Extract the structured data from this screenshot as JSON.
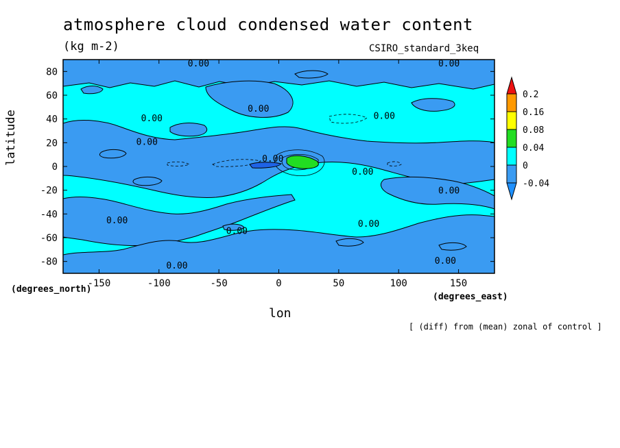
{
  "chart_data": {
    "type": "heatmap",
    "title": "atmosphere cloud condensed water content",
    "units": "(kg m-2)",
    "model": "CSIRO_standard_3keq",
    "xlabel": "lon",
    "ylabel": "latitude",
    "x_units": "(degrees_east)",
    "y_units": "(degrees_north)",
    "footnote": "[ (diff) from (mean) zonal of control ]",
    "xlim": [
      -180,
      180
    ],
    "ylim": [
      -90,
      90
    ],
    "x_ticks": [
      -150,
      -100,
      -50,
      0,
      50,
      100,
      150
    ],
    "y_ticks": [
      80,
      60,
      40,
      20,
      0,
      -20,
      -40,
      -60,
      -80
    ],
    "colorbar": {
      "levels": [
        -0.04,
        0,
        0.04,
        0.08,
        0.16,
        0.2
      ],
      "level_labels": [
        "-0.04",
        "0",
        "0.04",
        "0.08",
        "0.16",
        "0.2"
      ],
      "colors": [
        "#1e90ff",
        "#3a9bf2",
        "#00ffff",
        "#22dd22",
        "#ffff00",
        "#ff9900",
        "#ee1111"
      ]
    },
    "contour_labels": [
      {
        "text": "0.00",
        "lon": -67,
        "lat": 87
      },
      {
        "text": "0.00",
        "lon": 142,
        "lat": 87
      },
      {
        "text": "0.00",
        "lon": -17,
        "lat": 49
      },
      {
        "text": "0.00",
        "lon": 88,
        "lat": 43
      },
      {
        "text": "0.00",
        "lon": -106,
        "lat": 41
      },
      {
        "text": "0.00",
        "lon": -110,
        "lat": 21
      },
      {
        "text": "0.00",
        "lon": -5,
        "lat": 7
      },
      {
        "text": "0.00",
        "lon": 70,
        "lat": -4
      },
      {
        "text": "0.00",
        "lon": 142,
        "lat": -20
      },
      {
        "text": "0.00",
        "lon": -135,
        "lat": -45
      },
      {
        "text": "0.00",
        "lon": -35,
        "lat": -54
      },
      {
        "text": "0.00",
        "lon": 75,
        "lat": -48
      },
      {
        "text": "0.00",
        "lon": 139,
        "lat": -79
      },
      {
        "text": "0.00",
        "lon": -85,
        "lat": -83
      }
    ],
    "features": [
      {
        "description": "positive maximum (0.04 to 0.08)",
        "lon": 20,
        "lat": 4
      },
      {
        "description": "negative minimum (below -0.04)",
        "lon": -12,
        "lat": 0
      }
    ]
  }
}
